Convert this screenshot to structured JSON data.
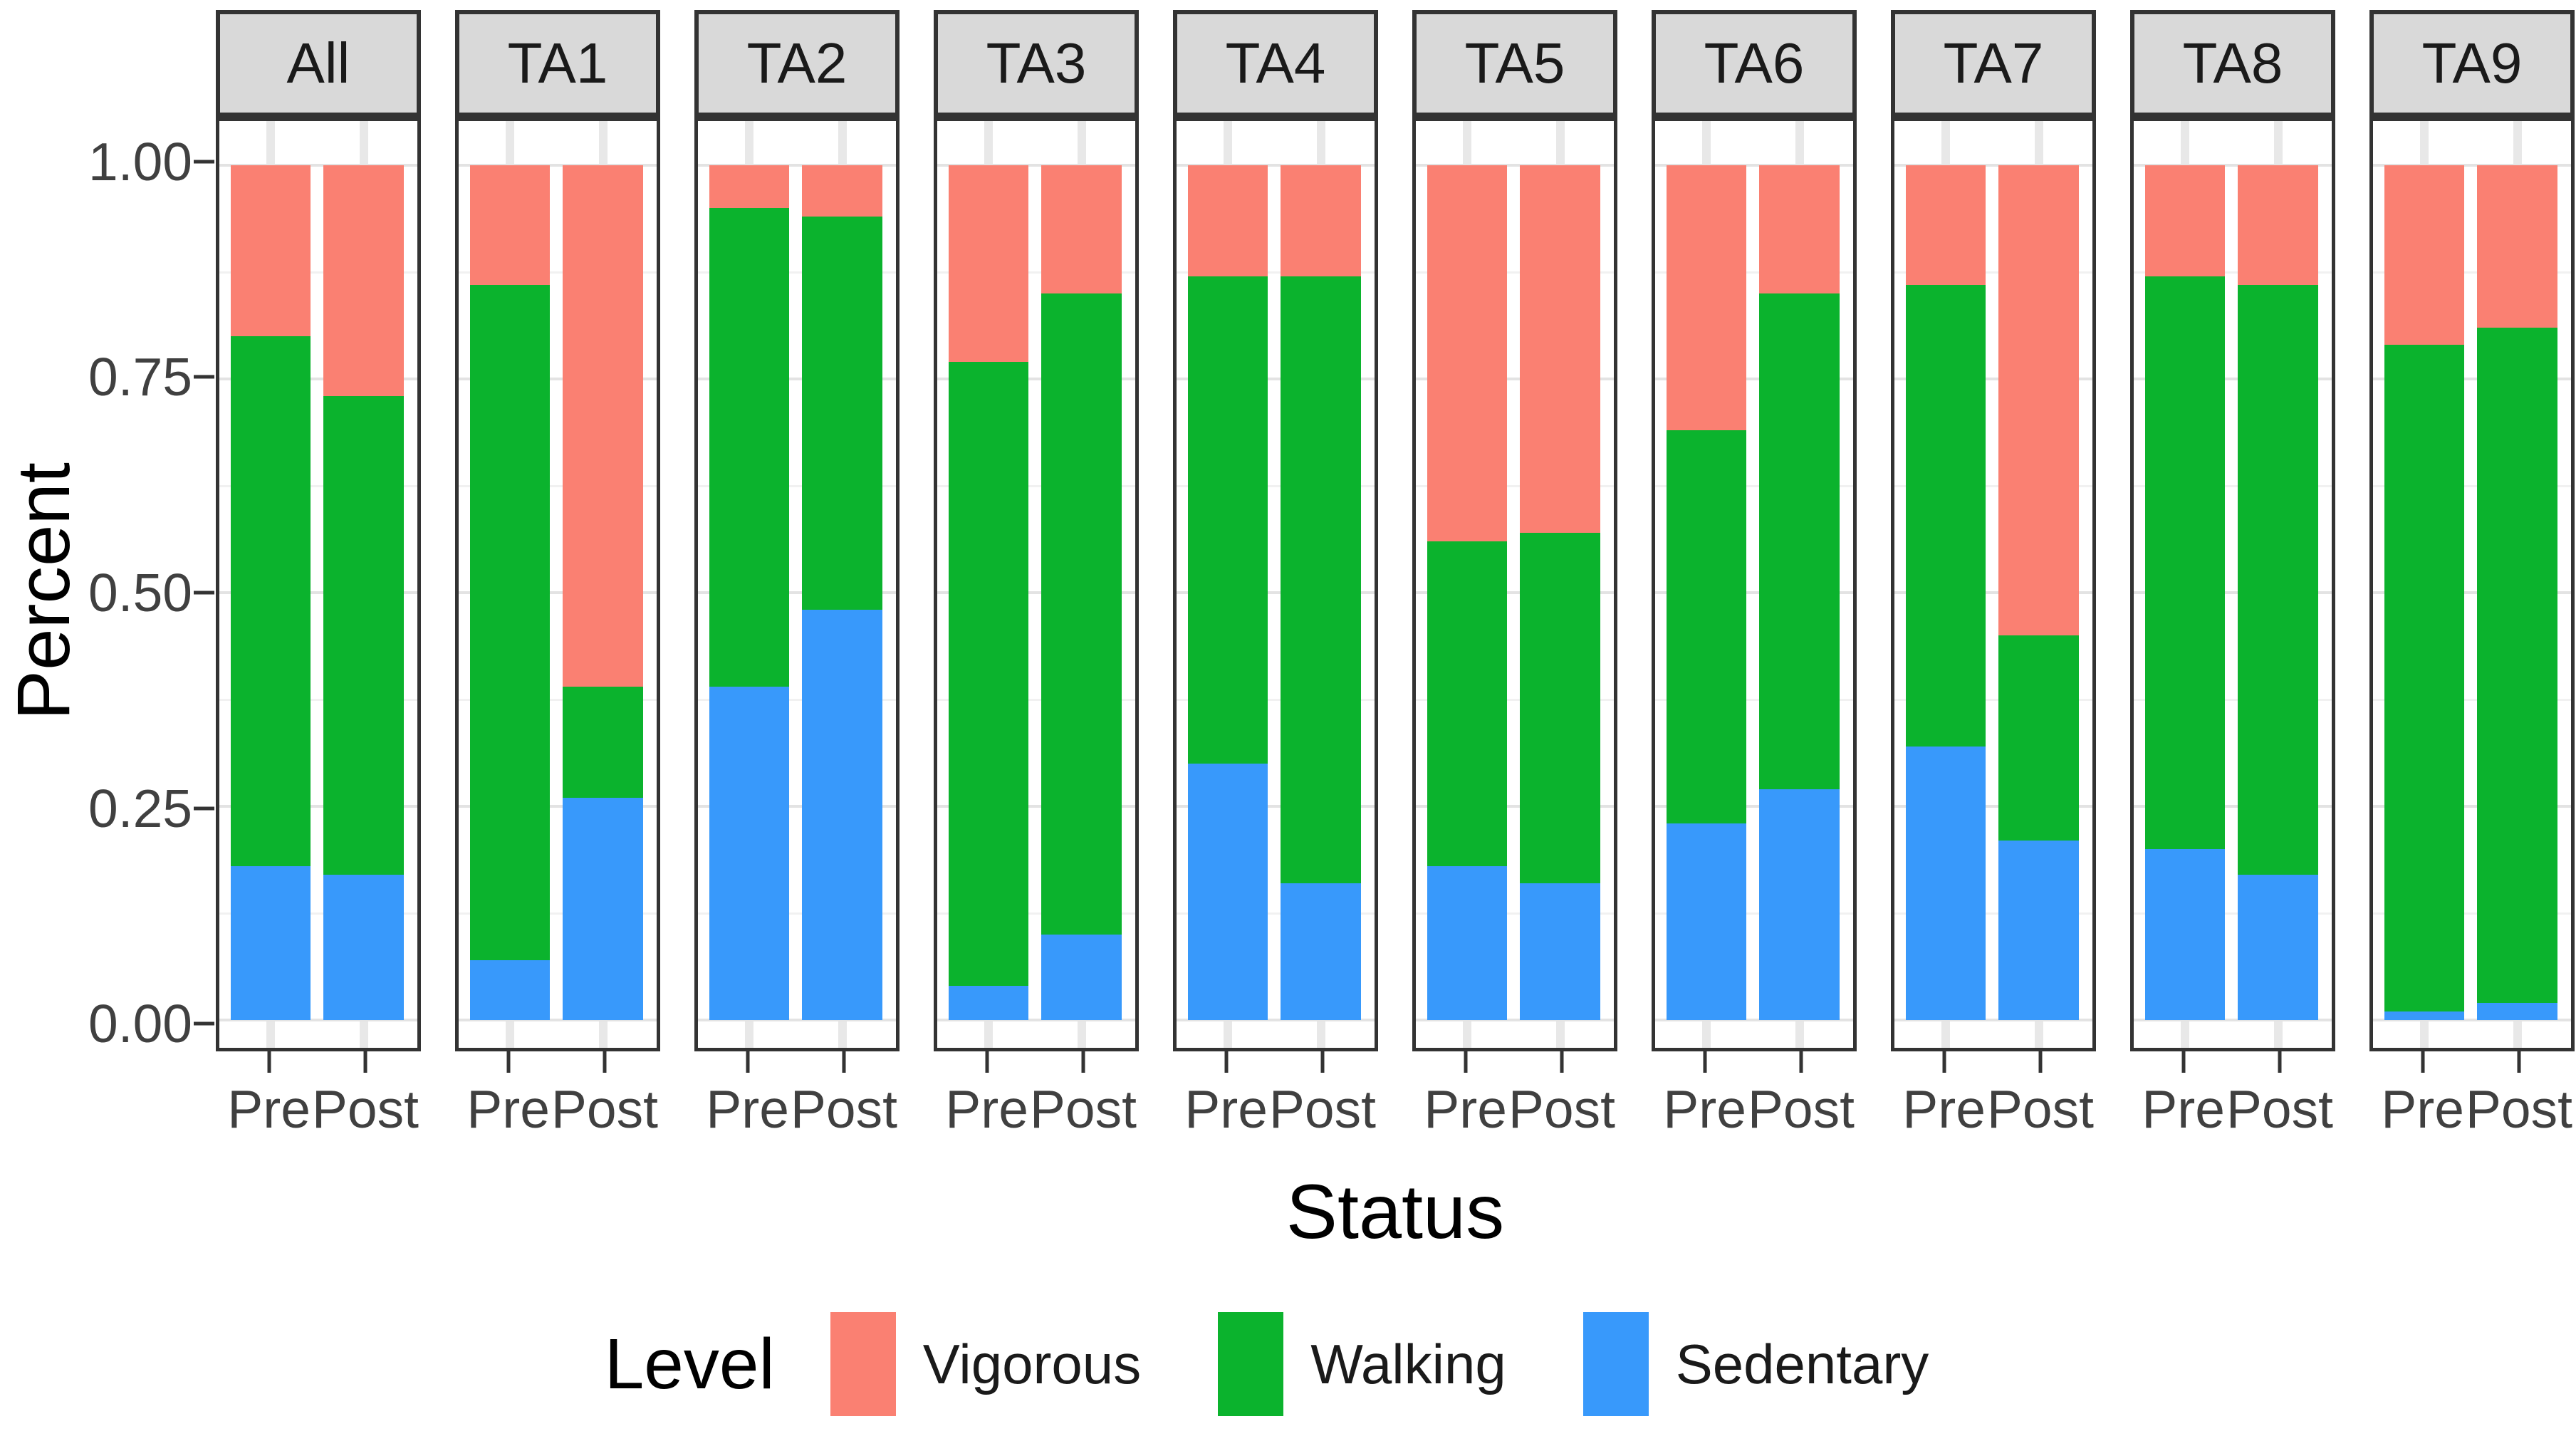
{
  "chart_data": {
    "type": "bar",
    "stacked": true,
    "facet_labels": [
      "All",
      "TA1",
      "TA2",
      "TA3",
      "TA4",
      "TA5",
      "TA6",
      "TA7",
      "TA8",
      "TA9"
    ],
    "x_categories": [
      "Pre",
      "Post"
    ],
    "stack_order_bottom_to_top": [
      "Sedentary",
      "Walking",
      "Vigorous"
    ],
    "legend_title": "Level",
    "legend_entries": [
      "Vigorous",
      "Walking",
      "Sedentary"
    ],
    "colors": {
      "Vigorous": "#FA8072",
      "Walking": "#0BB32D",
      "Sedentary": "#3899FB"
    },
    "style_colors": {
      "panel_border": "#333333",
      "strip_fill": "#D9D9D9",
      "axis_text": "#404040"
    },
    "xlabel": "Status",
    "ylabel": "Percent",
    "ylim": [
      0,
      1
    ],
    "ytick_labels": [
      "1.00",
      "0.75",
      "0.50",
      "0.25",
      "0.00"
    ],
    "ytick_values": [
      1.0,
      0.75,
      0.5,
      0.25,
      0.0
    ],
    "minor_grid_values": [
      0.875,
      0.625,
      0.375,
      0.125
    ],
    "grid": {
      "major_step": 0.25,
      "minor_step": 0.125,
      "shown": true
    },
    "legend_position": "bottom",
    "values": {
      "All": {
        "Pre": {
          "Sedentary": 0.18,
          "Walking": 0.62,
          "Vigorous": 0.2
        },
        "Post": {
          "Sedentary": 0.17,
          "Walking": 0.56,
          "Vigorous": 0.27
        }
      },
      "TA1": {
        "Pre": {
          "Sedentary": 0.07,
          "Walking": 0.79,
          "Vigorous": 0.14
        },
        "Post": {
          "Sedentary": 0.26,
          "Walking": 0.13,
          "Vigorous": 0.61
        }
      },
      "TA2": {
        "Pre": {
          "Sedentary": 0.39,
          "Walking": 0.56,
          "Vigorous": 0.05
        },
        "Post": {
          "Sedentary": 0.48,
          "Walking": 0.46,
          "Vigorous": 0.06
        }
      },
      "TA3": {
        "Pre": {
          "Sedentary": 0.04,
          "Walking": 0.73,
          "Vigorous": 0.23
        },
        "Post": {
          "Sedentary": 0.1,
          "Walking": 0.75,
          "Vigorous": 0.15
        }
      },
      "TA4": {
        "Pre": {
          "Sedentary": 0.3,
          "Walking": 0.57,
          "Vigorous": 0.13
        },
        "Post": {
          "Sedentary": 0.16,
          "Walking": 0.71,
          "Vigorous": 0.13
        }
      },
      "TA5": {
        "Pre": {
          "Sedentary": 0.18,
          "Walking": 0.38,
          "Vigorous": 0.44
        },
        "Post": {
          "Sedentary": 0.16,
          "Walking": 0.41,
          "Vigorous": 0.43
        }
      },
      "TA6": {
        "Pre": {
          "Sedentary": 0.23,
          "Walking": 0.46,
          "Vigorous": 0.31
        },
        "Post": {
          "Sedentary": 0.27,
          "Walking": 0.58,
          "Vigorous": 0.15
        }
      },
      "TA7": {
        "Pre": {
          "Sedentary": 0.32,
          "Walking": 0.54,
          "Vigorous": 0.14
        },
        "Post": {
          "Sedentary": 0.21,
          "Walking": 0.24,
          "Vigorous": 0.55
        }
      },
      "TA8": {
        "Pre": {
          "Sedentary": 0.2,
          "Walking": 0.67,
          "Vigorous": 0.13
        },
        "Post": {
          "Sedentary": 0.17,
          "Walking": 0.69,
          "Vigorous": 0.14
        }
      },
      "TA9": {
        "Pre": {
          "Sedentary": 0.01,
          "Walking": 0.78,
          "Vigorous": 0.21
        },
        "Post": {
          "Sedentary": 0.02,
          "Walking": 0.79,
          "Vigorous": 0.19
        }
      }
    }
  }
}
